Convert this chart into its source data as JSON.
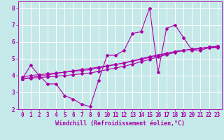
{
  "xlabel": "Windchill (Refroidissement éolien,°C)",
  "xlim": [
    -0.5,
    23.5
  ],
  "ylim": [
    2,
    8.4
  ],
  "xticks": [
    0,
    1,
    2,
    3,
    4,
    5,
    6,
    7,
    8,
    9,
    10,
    11,
    12,
    13,
    14,
    15,
    16,
    17,
    18,
    19,
    20,
    21,
    22,
    23
  ],
  "yticks": [
    2,
    3,
    4,
    5,
    6,
    7,
    8
  ],
  "bg_color": "#c5e8e8",
  "grid_color": "#ffffff",
  "line_color": "#aa00aa",
  "series": [
    {
      "x": [
        0,
        1,
        2,
        3,
        4,
        5,
        6,
        7,
        8,
        9,
        10,
        11,
        12,
        13,
        14,
        15,
        16,
        17,
        18,
        19,
        20,
        21,
        22,
        23
      ],
      "y": [
        3.8,
        4.6,
        4.0,
        3.5,
        3.5,
        2.8,
        2.6,
        2.3,
        2.15,
        3.7,
        5.2,
        5.2,
        5.5,
        6.5,
        6.6,
        8.0,
        4.2,
        6.8,
        7.0,
        6.25,
        5.5,
        5.5,
        5.65,
        5.65
      ]
    },
    {
      "x": [
        0,
        1,
        2,
        3,
        4,
        5,
        6,
        7,
        8,
        9,
        10,
        11,
        12,
        13,
        14,
        15,
        16,
        17,
        18,
        19,
        20,
        21,
        22,
        23
      ],
      "y": [
        3.9,
        4.0,
        4.05,
        4.1,
        4.15,
        4.2,
        4.25,
        4.3,
        4.35,
        4.45,
        4.55,
        4.65,
        4.75,
        4.88,
        5.0,
        5.12,
        5.22,
        5.32,
        5.42,
        5.5,
        5.55,
        5.6,
        5.65,
        5.7
      ]
    },
    {
      "x": [
        0,
        1,
        2,
        3,
        4,
        5,
        6,
        7,
        8,
        9,
        10,
        11,
        12,
        13,
        14,
        15,
        16,
        17,
        18,
        19,
        20,
        21,
        22,
        23
      ],
      "y": [
        3.8,
        3.88,
        3.96,
        4.04,
        4.12,
        4.2,
        4.28,
        4.35,
        4.42,
        4.5,
        4.58,
        4.66,
        4.74,
        4.85,
        4.96,
        5.07,
        5.18,
        5.3,
        5.42,
        5.5,
        5.56,
        5.62,
        5.68,
        5.74
      ]
    },
    {
      "x": [
        0,
        1,
        2,
        3,
        4,
        5,
        6,
        7,
        8,
        9,
        10,
        11,
        12,
        13,
        14,
        15,
        16,
        17,
        18,
        19,
        20,
        21,
        22,
        23
      ],
      "y": [
        3.8,
        3.84,
        3.88,
        3.92,
        3.96,
        4.0,
        4.05,
        4.1,
        4.15,
        4.25,
        4.35,
        4.45,
        4.55,
        4.68,
        4.82,
        4.96,
        5.1,
        5.24,
        5.38,
        5.48,
        5.55,
        5.62,
        5.68,
        5.74
      ]
    }
  ],
  "tick_fontsize": 5.5,
  "xlabel_fontsize": 6.0,
  "figsize": [
    3.2,
    2.0
  ],
  "dpi": 100
}
